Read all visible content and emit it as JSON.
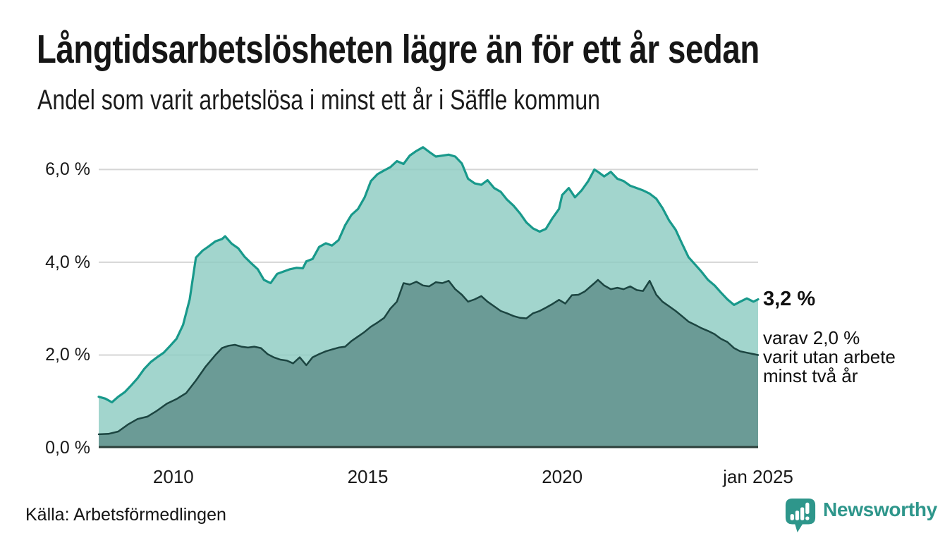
{
  "header": {
    "title": "Långtidsarbetslösheten lägre än för ett år sedan",
    "subtitle": "Andel som varit arbetslösa i minst ett år i Säffle kommun"
  },
  "chart_data": {
    "type": "area",
    "title": "Långtidsarbetslösheten lägre än för ett år sedan",
    "subtitle": "Andel som varit arbetslösa i minst ett år i Säffle kommun",
    "grid": "horizontal-only",
    "gridline_color": "#d5d5d5",
    "baseline_color": "#2c3f3b",
    "x_axis": {
      "range": [
        2008.08,
        2025.04
      ],
      "ticks": [
        {
          "value": 2010,
          "label": "2010"
        },
        {
          "value": 2015,
          "label": "2015"
        },
        {
          "value": 2020,
          "label": "2020"
        },
        {
          "value": 2025.04,
          "label": "jan 2025"
        }
      ]
    },
    "y_axis": {
      "unit": "%",
      "range": [
        0,
        6.69
      ],
      "gridline_values": [
        2,
        4,
        6
      ],
      "ticks": [
        {
          "value": 6,
          "label": "6,0 %"
        },
        {
          "value": 4,
          "label": "4,0 %"
        },
        {
          "value": 2,
          "label": "2,0 %"
        },
        {
          "value": 0,
          "label": "0,0 %"
        }
      ]
    },
    "series": [
      {
        "name": "Arbetslösa minst ett år",
        "color": "#18998b",
        "stroke_width": 3.2,
        "fill": "rgba(142,204,194,0.82)",
        "x": [
          2008.08,
          2008.25,
          2008.42,
          2008.58,
          2008.75,
          2008.92,
          2009.08,
          2009.25,
          2009.42,
          2009.58,
          2009.75,
          2009.92,
          2010.08,
          2010.25,
          2010.42,
          2010.58,
          2010.75,
          2010.92,
          2011.08,
          2011.25,
          2011.33,
          2011.5,
          2011.67,
          2011.83,
          2012.0,
          2012.17,
          2012.33,
          2012.5,
          2012.67,
          2012.83,
          2013.0,
          2013.17,
          2013.33,
          2013.42,
          2013.58,
          2013.75,
          2013.92,
          2014.08,
          2014.25,
          2014.42,
          2014.58,
          2014.75,
          2014.92,
          2015.08,
          2015.25,
          2015.42,
          2015.58,
          2015.75,
          2015.92,
          2016.08,
          2016.25,
          2016.42,
          2016.58,
          2016.75,
          2016.92,
          2017.08,
          2017.25,
          2017.42,
          2017.58,
          2017.75,
          2017.92,
          2018.08,
          2018.25,
          2018.42,
          2018.58,
          2018.75,
          2018.92,
          2019.08,
          2019.25,
          2019.42,
          2019.58,
          2019.75,
          2019.92,
          2020.0,
          2020.17,
          2020.33,
          2020.5,
          2020.67,
          2020.83,
          2020.92,
          2021.08,
          2021.25,
          2021.42,
          2021.58,
          2021.75,
          2021.92,
          2022.08,
          2022.25,
          2022.42,
          2022.58,
          2022.75,
          2022.92,
          2023.08,
          2023.25,
          2023.42,
          2023.58,
          2023.75,
          2023.92,
          2024.08,
          2024.25,
          2024.42,
          2024.58,
          2024.75,
          2024.92,
          2025.04
        ],
        "values": [
          1.1,
          1.06,
          0.98,
          1.1,
          1.2,
          1.35,
          1.5,
          1.7,
          1.85,
          1.95,
          2.05,
          2.2,
          2.35,
          2.65,
          3.2,
          4.1,
          4.25,
          4.35,
          4.45,
          4.5,
          4.56,
          4.4,
          4.3,
          4.12,
          3.98,
          3.85,
          3.62,
          3.55,
          3.75,
          3.8,
          3.85,
          3.88,
          3.87,
          4.02,
          4.07,
          4.33,
          4.41,
          4.36,
          4.48,
          4.8,
          5.02,
          5.15,
          5.4,
          5.75,
          5.9,
          5.98,
          6.05,
          6.18,
          6.12,
          6.3,
          6.4,
          6.48,
          6.38,
          6.28,
          6.3,
          6.32,
          6.28,
          6.13,
          5.8,
          5.7,
          5.67,
          5.77,
          5.6,
          5.52,
          5.35,
          5.22,
          5.05,
          4.86,
          4.73,
          4.66,
          4.72,
          4.95,
          5.15,
          5.45,
          5.6,
          5.4,
          5.55,
          5.75,
          6.0,
          5.95,
          5.85,
          5.95,
          5.8,
          5.75,
          5.65,
          5.6,
          5.55,
          5.48,
          5.37,
          5.17,
          4.9,
          4.7,
          4.41,
          4.11,
          3.95,
          3.8,
          3.62,
          3.5,
          3.35,
          3.2,
          3.08,
          3.15,
          3.22,
          3.15,
          3.2
        ]
      },
      {
        "name": "Arbetslösa minst två år",
        "color": "#1c4541",
        "stroke_width": 2.5,
        "fill": "rgba(104,152,146,0.95)",
        "x": [
          2008.08,
          2008.33,
          2008.58,
          2008.83,
          2009.08,
          2009.33,
          2009.58,
          2009.83,
          2010.08,
          2010.33,
          2010.58,
          2010.83,
          2011.08,
          2011.25,
          2011.42,
          2011.58,
          2011.75,
          2011.92,
          2012.08,
          2012.25,
          2012.42,
          2012.58,
          2012.75,
          2012.92,
          2013.08,
          2013.25,
          2013.42,
          2013.58,
          2013.75,
          2013.92,
          2014.08,
          2014.25,
          2014.42,
          2014.58,
          2014.75,
          2014.92,
          2015.08,
          2015.25,
          2015.42,
          2015.58,
          2015.75,
          2015.92,
          2016.08,
          2016.25,
          2016.42,
          2016.58,
          2016.75,
          2016.92,
          2017.08,
          2017.25,
          2017.42,
          2017.58,
          2017.75,
          2017.92,
          2018.08,
          2018.25,
          2018.42,
          2018.58,
          2018.75,
          2018.92,
          2019.08,
          2019.25,
          2019.42,
          2019.58,
          2019.75,
          2019.92,
          2020.08,
          2020.25,
          2020.42,
          2020.58,
          2020.83,
          2020.92,
          2021.08,
          2021.25,
          2021.42,
          2021.58,
          2021.75,
          2021.92,
          2022.08,
          2022.25,
          2022.42,
          2022.58,
          2022.75,
          2022.92,
          2023.08,
          2023.25,
          2023.42,
          2023.58,
          2023.75,
          2023.92,
          2024.08,
          2024.25,
          2024.42,
          2024.58,
          2024.75,
          2024.92,
          2025.04
        ],
        "values": [
          0.29,
          0.3,
          0.35,
          0.5,
          0.62,
          0.67,
          0.8,
          0.95,
          1.05,
          1.18,
          1.45,
          1.75,
          2.0,
          2.15,
          2.2,
          2.22,
          2.18,
          2.16,
          2.18,
          2.15,
          2.02,
          1.95,
          1.9,
          1.88,
          1.82,
          1.95,
          1.78,
          1.95,
          2.02,
          2.08,
          2.12,
          2.16,
          2.18,
          2.3,
          2.4,
          2.5,
          2.61,
          2.7,
          2.8,
          3.0,
          3.15,
          3.55,
          3.52,
          3.58,
          3.5,
          3.48,
          3.57,
          3.55,
          3.6,
          3.42,
          3.3,
          3.15,
          3.2,
          3.27,
          3.15,
          3.05,
          2.95,
          2.9,
          2.84,
          2.8,
          2.79,
          2.9,
          2.95,
          3.02,
          3.1,
          3.19,
          3.11,
          3.29,
          3.3,
          3.37,
          3.55,
          3.62,
          3.5,
          3.42,
          3.45,
          3.42,
          3.48,
          3.4,
          3.38,
          3.6,
          3.3,
          3.15,
          3.05,
          2.95,
          2.84,
          2.72,
          2.65,
          2.58,
          2.52,
          2.45,
          2.35,
          2.28,
          2.15,
          2.08,
          2.05,
          2.02,
          2.0
        ]
      }
    ],
    "annotations": {
      "end_value": "3,2 %",
      "sub_line1": "varav 2,0 %",
      "sub_line2": "varit utan arbete",
      "sub_line3": "minst två år"
    }
  },
  "footer": {
    "source": "Källa: Arbetsförmedlingen",
    "brand": "Newsworthy",
    "brand_color": "#2e968b"
  }
}
